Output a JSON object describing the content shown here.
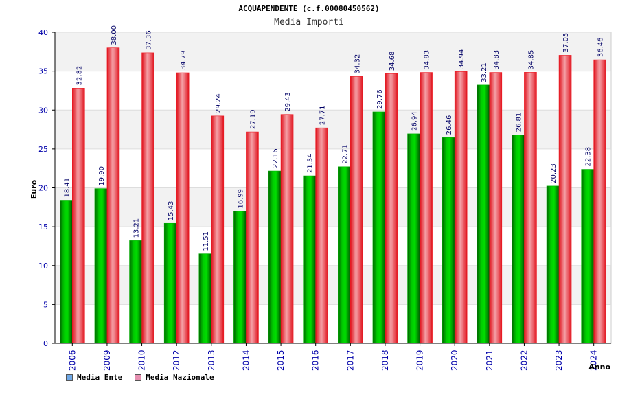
{
  "header": {
    "title": "ACQUAPENDENTE (c.f.00080450562)",
    "subtitle": "Media Importi"
  },
  "legend": {
    "items": [
      {
        "label": "Media Ente",
        "color": "#6fa8e6"
      },
      {
        "label": "Media Nazionale",
        "color": "#e68fb0"
      }
    ]
  },
  "colors": {
    "ente_bar": "#00b000",
    "nazionale_bar": "#ee1c25",
    "axis_text": "#0000aa",
    "value_text": "#000066",
    "band": "#f2f2f2"
  },
  "chart_data": {
    "type": "bar",
    "title": "ACQUAPENDENTE (c.f.00080450562)",
    "subtitle": "Media Importi",
    "xlabel": "Anno",
    "ylabel": "Euro",
    "ylim": [
      0,
      40
    ],
    "yticks": [
      0,
      5,
      10,
      15,
      20,
      25,
      30,
      35,
      40
    ],
    "categories": [
      "2006",
      "2009",
      "2010",
      "2012",
      "2013",
      "2014",
      "2015",
      "2016",
      "2017",
      "2018",
      "2019",
      "2020",
      "2021",
      "2022",
      "2023",
      "2024"
    ],
    "series": [
      {
        "name": "Media Ente",
        "values": [
          18.41,
          19.9,
          13.21,
          15.43,
          11.51,
          16.99,
          22.16,
          21.54,
          22.71,
          29.76,
          26.94,
          26.46,
          33.21,
          26.81,
          20.23,
          22.38
        ],
        "labels": [
          "18.41",
          "19.90",
          "13.21",
          "15.43",
          "11.51",
          "16.99",
          "22.16",
          "21.54",
          "22.71",
          "29.76",
          "26.94",
          "26.46",
          "33.21",
          "26.81",
          "20.23",
          "22.38"
        ]
      },
      {
        "name": "Media Nazionale",
        "values": [
          32.82,
          38.0,
          37.36,
          34.79,
          29.24,
          27.19,
          29.43,
          27.71,
          34.32,
          34.68,
          34.83,
          34.94,
          34.83,
          34.85,
          37.05,
          36.46
        ],
        "labels": [
          "32.82",
          "38.00",
          "37.36",
          "34.79",
          "29.24",
          "27.19",
          "29.43",
          "27.71",
          "34.32",
          "34.68",
          "34.83",
          "34.94",
          "34.83",
          "34.85",
          "37.05",
          "36.46"
        ]
      }
    ],
    "grid": true,
    "legend_position": "bottom-left"
  }
}
